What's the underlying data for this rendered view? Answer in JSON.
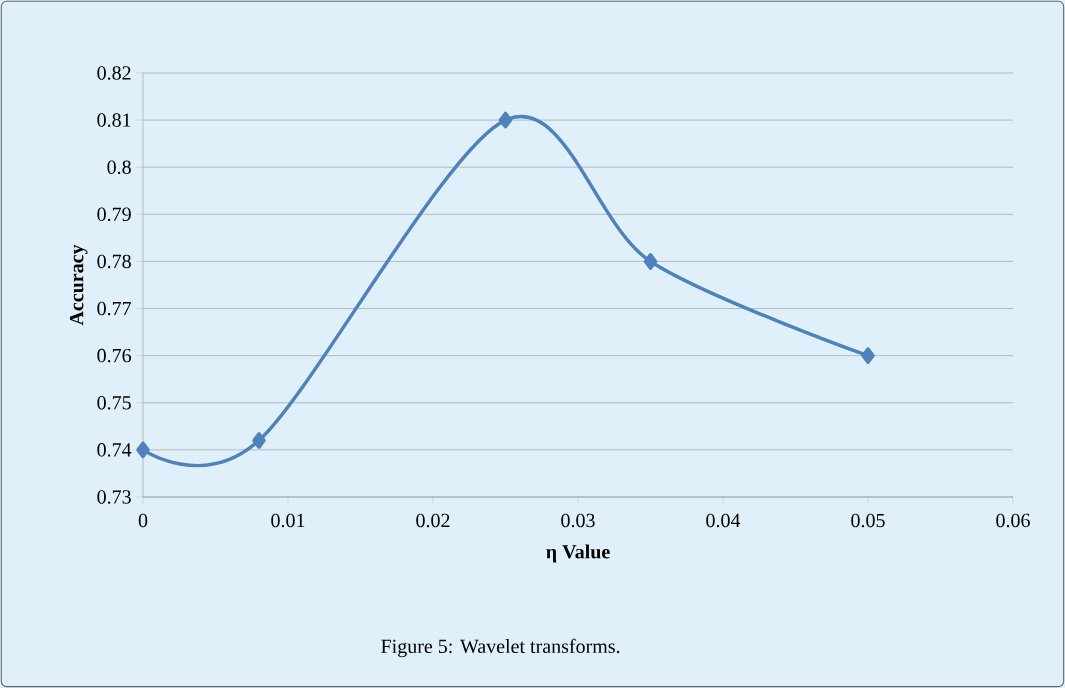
{
  "chart_data": {
    "type": "line",
    "xlabel": "η Value",
    "ylabel": "Accuracy",
    "annotations": [
      "Figure 5: Wavelet transforms."
    ],
    "x": [
      0,
      0.008,
      0.025,
      0.035,
      0.05
    ],
    "series": [
      {
        "color": "#4f81bd",
        "values": [
          0.74,
          0.742,
          0.81,
          0.78,
          0.76
        ]
      }
    ],
    "xlim": [
      0,
      0.06
    ],
    "xticks": [
      0,
      0.01,
      0.02,
      0.03,
      0.04,
      0.05,
      0.06
    ],
    "ylim": [
      0.73,
      0.82
    ],
    "yticks": [
      0.73,
      0.74,
      0.75,
      0.76,
      0.77,
      0.78,
      0.79,
      0.8,
      0.81,
      0.82
    ],
    "grid": "y",
    "marker": "diamond",
    "line_style": "solid"
  }
}
